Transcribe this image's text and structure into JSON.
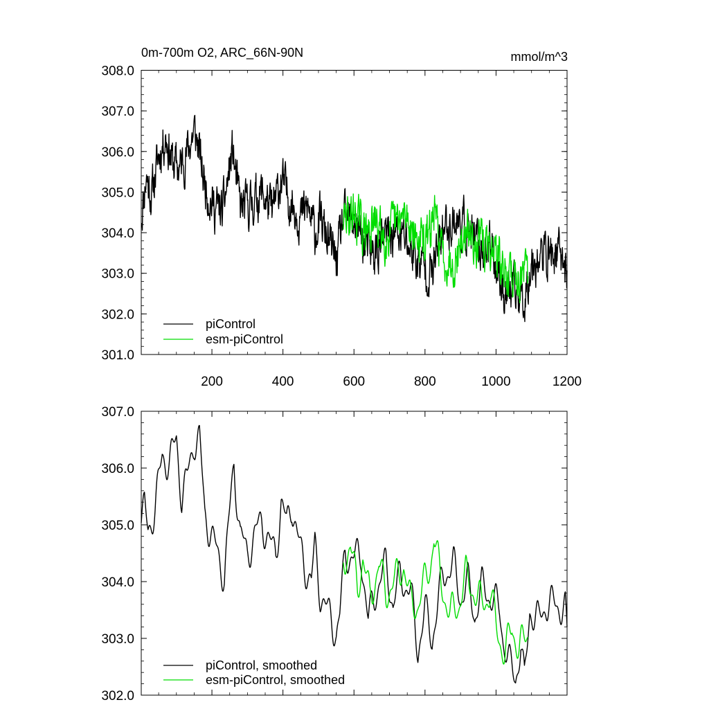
{
  "chart_data": [
    {
      "type": "line",
      "title": "0m-700m O2, ARC_66N-90N",
      "units": "mmol/m^3",
      "xlabel": "",
      "ylabel": "",
      "xlim": [
        1,
        1200
      ],
      "ylim": [
        301.0,
        308.0
      ],
      "x_ticks": [
        "200",
        "400",
        "600",
        "800",
        "1000",
        "1200"
      ],
      "y_ticks": [
        "308.0",
        "307.0",
        "306.0",
        "305.0",
        "304.0",
        "303.0",
        "302.0",
        "301.0"
      ],
      "legend": {
        "position": "bottom-left"
      },
      "series": [
        {
          "name": "piControl",
          "color": "#000000",
          "x_start": 1,
          "x_end": 1200,
          "anchors": [
            [
              1,
              304.4
            ],
            [
              15,
              305.4
            ],
            [
              30,
              304.9
            ],
            [
              50,
              305.9
            ],
            [
              70,
              306.4
            ],
            [
              90,
              305.7
            ],
            [
              110,
              305.6
            ],
            [
              130,
              306.0
            ],
            [
              150,
              306.5
            ],
            [
              160,
              306.2
            ],
            [
              175,
              305.4
            ],
            [
              200,
              304.7
            ],
            [
              230,
              304.5
            ],
            [
              258,
              306.0
            ],
            [
              280,
              304.6
            ],
            [
              310,
              304.7
            ],
            [
              340,
              305.0
            ],
            [
              370,
              304.5
            ],
            [
              395,
              305.3
            ],
            [
              420,
              304.8
            ],
            [
              450,
              304.4
            ],
            [
              470,
              304.6
            ],
            [
              490,
              304.0
            ],
            [
              505,
              304.3
            ],
            [
              550,
              303.3
            ],
            [
              570,
              304.3
            ],
            [
              600,
              304.3
            ],
            [
              640,
              303.5
            ],
            [
              660,
              303.5
            ],
            [
              700,
              304.0
            ],
            [
              740,
              303.9
            ],
            [
              780,
              303.3
            ],
            [
              820,
              303.0
            ],
            [
              850,
              304.1
            ],
            [
              880,
              304.3
            ],
            [
              910,
              304.2
            ],
            [
              950,
              303.6
            ],
            [
              990,
              303.6
            ],
            [
              1020,
              302.6
            ],
            [
              1050,
              302.5
            ],
            [
              1080,
              302.4
            ],
            [
              1100,
              303.3
            ],
            [
              1150,
              303.5
            ],
            [
              1190,
              303.4
            ],
            [
              1200,
              302.9
            ]
          ]
        },
        {
          "name": "esm-piControl",
          "color": "#00dd00",
          "x_start": 570,
          "x_end": 1090,
          "anchors": [
            [
              570,
              304.3
            ],
            [
              600,
              304.5
            ],
            [
              630,
              304.0
            ],
            [
              660,
              304.2
            ],
            [
              690,
              303.9
            ],
            [
              720,
              304.2
            ],
            [
              750,
              304.4
            ],
            [
              780,
              303.8
            ],
            [
              810,
              303.8
            ],
            [
              825,
              304.5
            ],
            [
              850,
              303.4
            ],
            [
              880,
              303.3
            ],
            [
              910,
              303.9
            ],
            [
              940,
              303.9
            ],
            [
              970,
              303.6
            ],
            [
              1000,
              303.6
            ],
            [
              1020,
              303.0
            ],
            [
              1050,
              302.9
            ],
            [
              1070,
              303.0
            ],
            [
              1090,
              302.8
            ]
          ]
        }
      ]
    },
    {
      "type": "line",
      "title": "",
      "xlabel": "",
      "ylabel": "",
      "xlim": [
        1,
        1200
      ],
      "ylim": [
        302.0,
        307.0
      ],
      "y_ticks": [
        "307.0",
        "306.0",
        "305.0",
        "304.0",
        "303.0",
        "302.0"
      ],
      "legend": {
        "position": "bottom-left"
      },
      "series": [
        {
          "name": "piControl, smoothed",
          "color": "#000000",
          "x_start": 1,
          "x_end": 1200,
          "anchors": [
            [
              1,
              305.0
            ],
            [
              10,
              305.3
            ],
            [
              20,
              304.9
            ],
            [
              40,
              305.3
            ],
            [
              60,
              306.2
            ],
            [
              80,
              306.1
            ],
            [
              100,
              306.5
            ],
            [
              115,
              305.5
            ],
            [
              130,
              305.8
            ],
            [
              150,
              306.5
            ],
            [
              165,
              306.5
            ],
            [
              180,
              305.2
            ],
            [
              200,
              304.8
            ],
            [
              215,
              304.5
            ],
            [
              235,
              304.1
            ],
            [
              250,
              305.2
            ],
            [
              262,
              306.1
            ],
            [
              280,
              304.8
            ],
            [
              300,
              304.5
            ],
            [
              320,
              304.8
            ],
            [
              340,
              305.1
            ],
            [
              360,
              304.7
            ],
            [
              380,
              304.5
            ],
            [
              395,
              305.4
            ],
            [
              410,
              305.0
            ],
            [
              425,
              305.4
            ],
            [
              440,
              304.8
            ],
            [
              460,
              304.3
            ],
            [
              480,
              304.0
            ],
            [
              490,
              304.6
            ],
            [
              505,
              303.8
            ],
            [
              550,
              303.1
            ],
            [
              560,
              303.4
            ],
            [
              575,
              304.5
            ],
            [
              600,
              304.4
            ],
            [
              620,
              304.5
            ],
            [
              640,
              303.3
            ],
            [
              660,
              303.8
            ],
            [
              690,
              304.3
            ],
            [
              710,
              303.6
            ],
            [
              730,
              304.1
            ],
            [
              760,
              303.8
            ],
            [
              780,
              302.8
            ],
            [
              800,
              303.5
            ],
            [
              820,
              303.0
            ],
            [
              850,
              304.1
            ],
            [
              880,
              304.3
            ],
            [
              900,
              303.7
            ],
            [
              920,
              304.0
            ],
            [
              940,
              303.4
            ],
            [
              960,
              303.9
            ],
            [
              990,
              303.7
            ],
            [
              1010,
              303.5
            ],
            [
              1020,
              303.0
            ],
            [
              1040,
              302.5
            ],
            [
              1055,
              302.3
            ],
            [
              1070,
              302.9
            ],
            [
              1080,
              302.2
            ],
            [
              1095,
              303.5
            ],
            [
              1120,
              303.3
            ],
            [
              1140,
              303.6
            ],
            [
              1170,
              303.6
            ],
            [
              1195,
              303.5
            ],
            [
              1200,
              303.0
            ]
          ]
        },
        {
          "name": "esm-piControl, smoothed",
          "color": "#00dd00",
          "x_start": 570,
          "x_end": 1090,
          "anchors": [
            [
              570,
              304.4
            ],
            [
              590,
              304.6
            ],
            [
              610,
              303.9
            ],
            [
              625,
              304.4
            ],
            [
              645,
              303.7
            ],
            [
              670,
              304.3
            ],
            [
              690,
              303.8
            ],
            [
              715,
              304.0
            ],
            [
              740,
              304.3
            ],
            [
              760,
              303.6
            ],
            [
              780,
              303.6
            ],
            [
              800,
              304.0
            ],
            [
              815,
              304.3
            ],
            [
              825,
              304.8
            ],
            [
              845,
              304.0
            ],
            [
              870,
              303.4
            ],
            [
              895,
              303.6
            ],
            [
              915,
              304.1
            ],
            [
              940,
              303.8
            ],
            [
              960,
              303.6
            ],
            [
              985,
              303.8
            ],
            [
              1000,
              303.2
            ],
            [
              1025,
              302.7
            ],
            [
              1045,
              303.2
            ],
            [
              1065,
              302.8
            ],
            [
              1090,
              303.1
            ]
          ]
        }
      ]
    }
  ]
}
